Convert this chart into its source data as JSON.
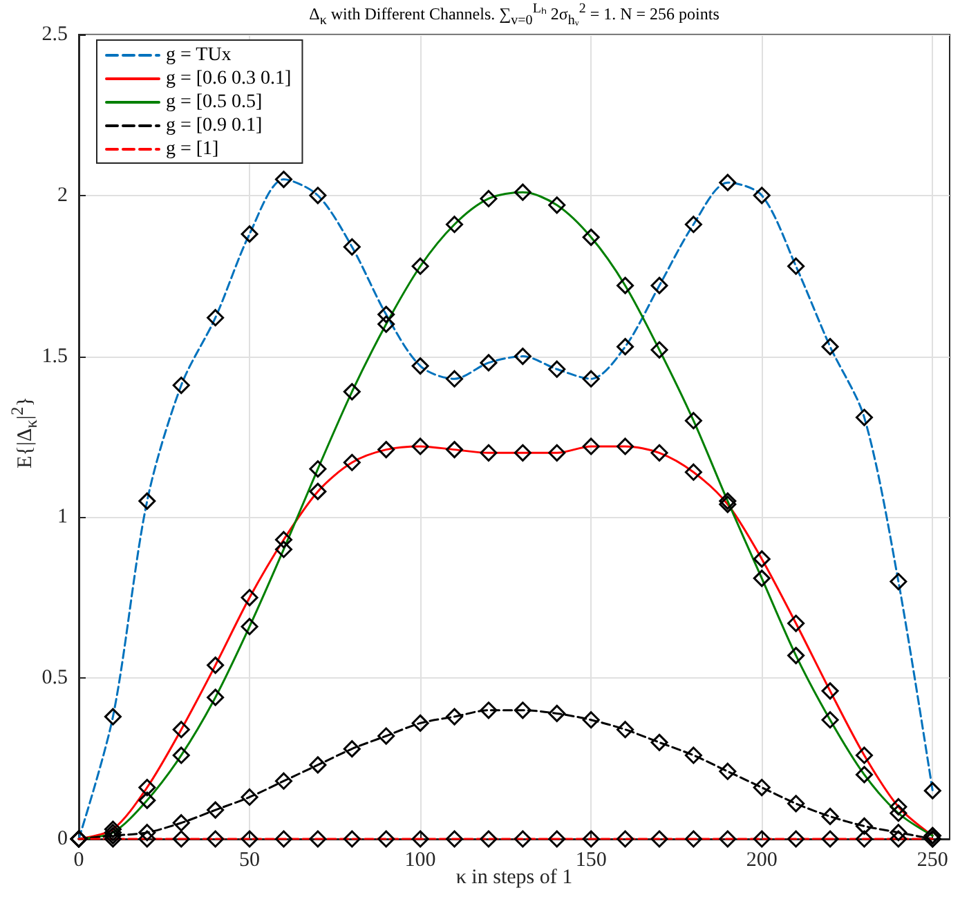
{
  "chart_data": {
    "type": "line",
    "title": "Δ$_{κ}$ with Different Channels. ∑$_{v=0}$$^{Lₕ}$ 2σ$_{hᵥ}$$^{2}$ = 1. N = 256 points",
    "xlabel": "κ in steps of 1",
    "ylabel": "E{|Δ$_{κ}$|$^{2}$}",
    "x": [
      0,
      10,
      20,
      30,
      40,
      50,
      60,
      70,
      80,
      90,
      100,
      110,
      120,
      130,
      140,
      150,
      160,
      170,
      180,
      190,
      200,
      210,
      220,
      230,
      240,
      250
    ],
    "xlim": [
      0,
      255
    ],
    "xticks": [
      0,
      50,
      100,
      150,
      200,
      250
    ],
    "ylim": [
      0,
      2.5
    ],
    "yticks": [
      0,
      0.5,
      1,
      1.5,
      2,
      2.5
    ],
    "grid": true,
    "legend": "top left",
    "marker": "diamond",
    "series": [
      {
        "name": "g = TUx",
        "color": "#0072bd",
        "line_style": "dashed",
        "values": [
          0,
          0.38,
          1.05,
          1.41,
          1.62,
          1.88,
          2.05,
          2.0,
          1.84,
          1.63,
          1.47,
          1.43,
          1.48,
          1.5,
          1.46,
          1.43,
          1.53,
          1.72,
          1.91,
          2.04,
          2.0,
          1.78,
          1.53,
          1.31,
          0.8,
          0.15
        ]
      },
      {
        "name": "g = [0.6 0.3 0.1]",
        "color": "#ff0000",
        "line_style": "solid",
        "values": [
          0,
          0.03,
          0.16,
          0.34,
          0.54,
          0.75,
          0.93,
          1.08,
          1.17,
          1.21,
          1.22,
          1.21,
          1.2,
          1.2,
          1.2,
          1.22,
          1.22,
          1.2,
          1.14,
          1.04,
          0.87,
          0.67,
          0.46,
          0.26,
          0.1,
          0.01
        ]
      },
      {
        "name": "g = [0.5 0.5]",
        "color": "#008000",
        "line_style": "solid",
        "values": [
          0,
          0.02,
          0.12,
          0.26,
          0.44,
          0.66,
          0.9,
          1.15,
          1.39,
          1.6,
          1.78,
          1.91,
          1.99,
          2.01,
          1.97,
          1.87,
          1.72,
          1.52,
          1.3,
          1.05,
          0.81,
          0.57,
          0.37,
          0.2,
          0.08,
          0.01
        ]
      },
      {
        "name": "g = [0.9 0.1]",
        "color": "#000000",
        "line_style": "dashed",
        "values": [
          0,
          0.01,
          0.02,
          0.05,
          0.09,
          0.13,
          0.18,
          0.23,
          0.28,
          0.32,
          0.36,
          0.38,
          0.4,
          0.4,
          0.39,
          0.37,
          0.34,
          0.3,
          0.26,
          0.21,
          0.16,
          0.11,
          0.07,
          0.04,
          0.02,
          0
        ]
      },
      {
        "name": "g = [1]",
        "color": "#ff0000",
        "line_style": "dashed",
        "values": [
          0,
          0,
          0,
          0,
          0,
          0,
          0,
          0,
          0,
          0,
          0,
          0,
          0,
          0,
          0,
          0,
          0,
          0,
          0,
          0,
          0,
          0,
          0,
          0,
          0,
          0
        ]
      }
    ]
  }
}
